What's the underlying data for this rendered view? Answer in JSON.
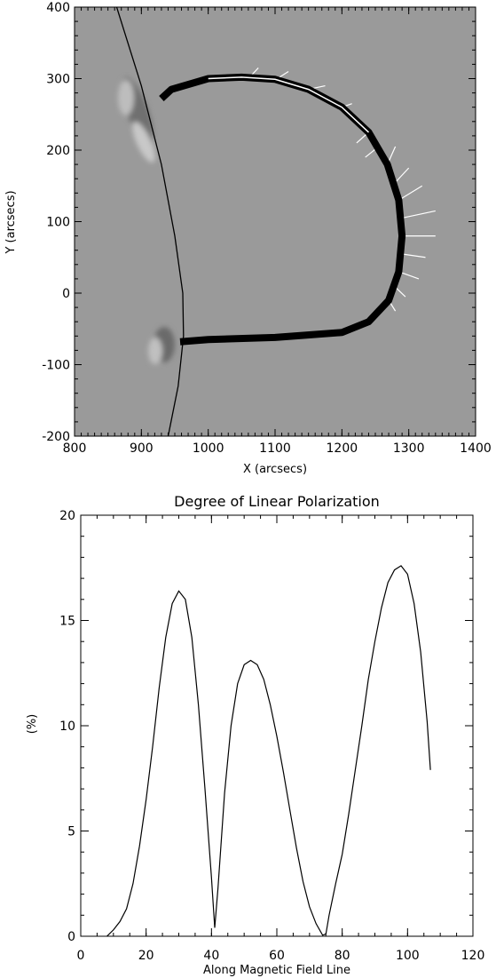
{
  "chart_data": [
    {
      "type": "scatter",
      "title": "",
      "xlabel": "X (arcsecs)",
      "ylabel": "Y (arcsecs)",
      "xlim": [
        800,
        1400
      ],
      "ylim": [
        -200,
        400
      ],
      "xticks": [
        800,
        900,
        1000,
        1100,
        1200,
        1300,
        1400
      ],
      "yticks": [
        -200,
        -100,
        0,
        100,
        200,
        300,
        400
      ],
      "background": "gray magnetogram image",
      "limb_curve": [
        [
          863,
          400
        ],
        [
          900,
          290
        ],
        [
          930,
          180
        ],
        [
          950,
          80
        ],
        [
          962,
          0
        ],
        [
          963,
          -60
        ],
        [
          955,
          -130
        ],
        [
          940,
          -200
        ]
      ],
      "field_line": [
        [
          930,
          272
        ],
        [
          945,
          285
        ],
        [
          1000,
          300
        ],
        [
          1050,
          302
        ],
        [
          1100,
          299
        ],
        [
          1150,
          285
        ],
        [
          1200,
          260
        ],
        [
          1240,
          225
        ],
        [
          1268,
          180
        ],
        [
          1285,
          130
        ],
        [
          1290,
          80
        ],
        [
          1285,
          30
        ],
        [
          1270,
          -10
        ],
        [
          1240,
          -40
        ],
        [
          1200,
          -55
        ],
        [
          1100,
          -62
        ],
        [
          1000,
          -65
        ],
        [
          958,
          -68
        ]
      ],
      "polarization_vectors": [
        [
          1060,
          300,
          1075,
          315
        ],
        [
          1100,
          298,
          1120,
          310
        ],
        [
          1150,
          285,
          1175,
          290
        ],
        [
          1200,
          260,
          1215,
          265
        ],
        [
          1240,
          225,
          1222,
          210
        ],
        [
          1255,
          205,
          1235,
          190
        ],
        [
          1268,
          180,
          1280,
          205
        ],
        [
          1280,
          155,
          1300,
          175
        ],
        [
          1285,
          130,
          1320,
          150
        ],
        [
          1290,
          105,
          1340,
          115
        ],
        [
          1290,
          80,
          1340,
          80
        ],
        [
          1288,
          55,
          1325,
          50
        ],
        [
          1285,
          30,
          1315,
          20
        ],
        [
          1278,
          10,
          1295,
          -5
        ],
        [
          1270,
          -10,
          1280,
          -25
        ]
      ]
    },
    {
      "type": "line",
      "title": "Degree of Linear Polarization",
      "xlabel": "Along Magnetic Field Line",
      "ylabel": "(%)",
      "xlim": [
        0,
        120
      ],
      "ylim": [
        0,
        20
      ],
      "xticks": [
        0,
        20,
        40,
        60,
        80,
        100,
        120
      ],
      "yticks": [
        0,
        5,
        10,
        15,
        20
      ],
      "series": [
        {
          "x": [
            0,
            4,
            6,
            8,
            10,
            12,
            14,
            16,
            18,
            20,
            22,
            24,
            26,
            28,
            30,
            32,
            34,
            36,
            38,
            40,
            41,
            42,
            44,
            46,
            48,
            50,
            52,
            54,
            56,
            58,
            60,
            62,
            64,
            66,
            68,
            70,
            72,
            74,
            75,
            76,
            78,
            80,
            82,
            84,
            86,
            88,
            90,
            92,
            94,
            96,
            98,
            100,
            102,
            104,
            106,
            107
          ],
          "y": [
            0.0,
            -0.1,
            -0.15,
            0.0,
            0.3,
            0.7,
            1.3,
            2.5,
            4.3,
            6.5,
            9.0,
            11.8,
            14.2,
            15.8,
            16.4,
            16.0,
            14.2,
            11.0,
            7.0,
            2.8,
            0.4,
            2.3,
            6.8,
            10.0,
            12.0,
            12.9,
            13.1,
            12.9,
            12.2,
            11.0,
            9.5,
            7.8,
            6.0,
            4.2,
            2.6,
            1.4,
            0.6,
            0.05,
            0.1,
            1.0,
            2.5,
            3.9,
            5.8,
            7.9,
            10.0,
            12.2,
            14.0,
            15.6,
            16.8,
            17.4,
            17.6,
            17.2,
            15.8,
            13.5,
            10.2,
            7.9
          ]
        }
      ]
    }
  ]
}
